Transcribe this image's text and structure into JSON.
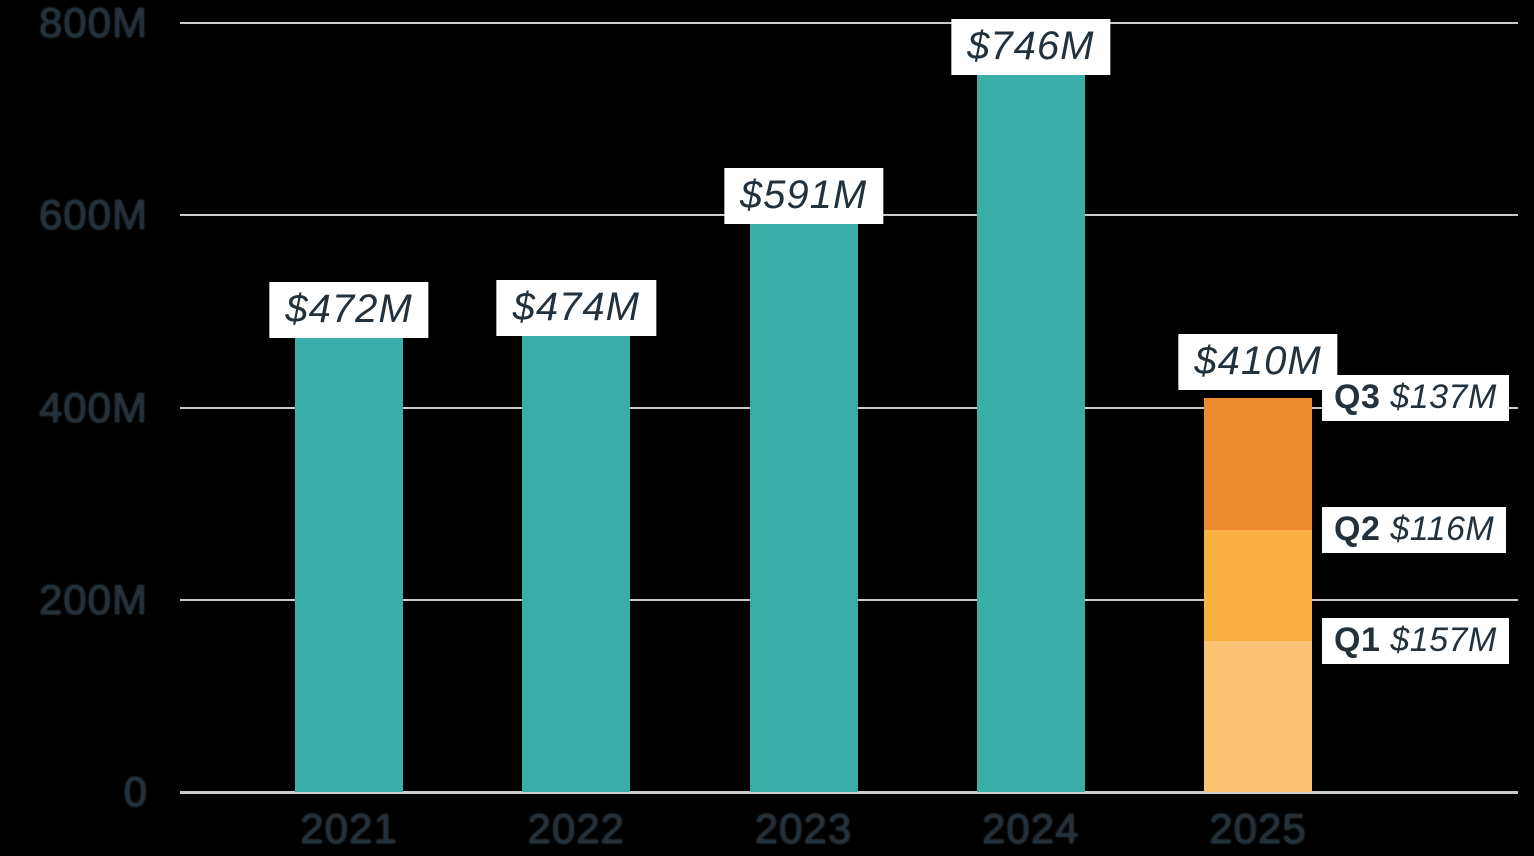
{
  "chart_data": {
    "type": "bar",
    "categories": [
      "2021",
      "2022",
      "2023",
      "2024",
      "2025"
    ],
    "values": [
      472,
      474,
      591,
      746,
      410
    ],
    "value_labels": [
      "$472M",
      "$474M",
      "$591M",
      "$746M",
      "$410M"
    ],
    "unit": "M (millions of dollars)",
    "ylim": [
      0,
      800
    ],
    "y_ticks": [
      {
        "value": 0,
        "label": "0"
      },
      {
        "value": 200,
        "label": "200M"
      },
      {
        "value": 400,
        "label": "400M"
      },
      {
        "value": 600,
        "label": "600M"
      },
      {
        "value": 800,
        "label": "800M"
      }
    ],
    "grid": "horizontal",
    "legend": "none",
    "bar_color": "#3AAFA9",
    "background": "#000000",
    "gridline_color": "#C7CAC9",
    "label_box_bg": "#FFFFFF",
    "text_color": "#23313C",
    "stacked_2025": {
      "total_value": 410,
      "total_label": "$410M",
      "segments_bottom_to_top": [
        {
          "name": "Q1",
          "value": 157,
          "label": "$157M",
          "color": "#FCC273"
        },
        {
          "name": "Q2",
          "value": 116,
          "label": "$116M",
          "color": "#F9AF41"
        },
        {
          "name": "Q3",
          "value": 137,
          "label": "$137M",
          "color": "#EB8A2F"
        }
      ]
    }
  }
}
